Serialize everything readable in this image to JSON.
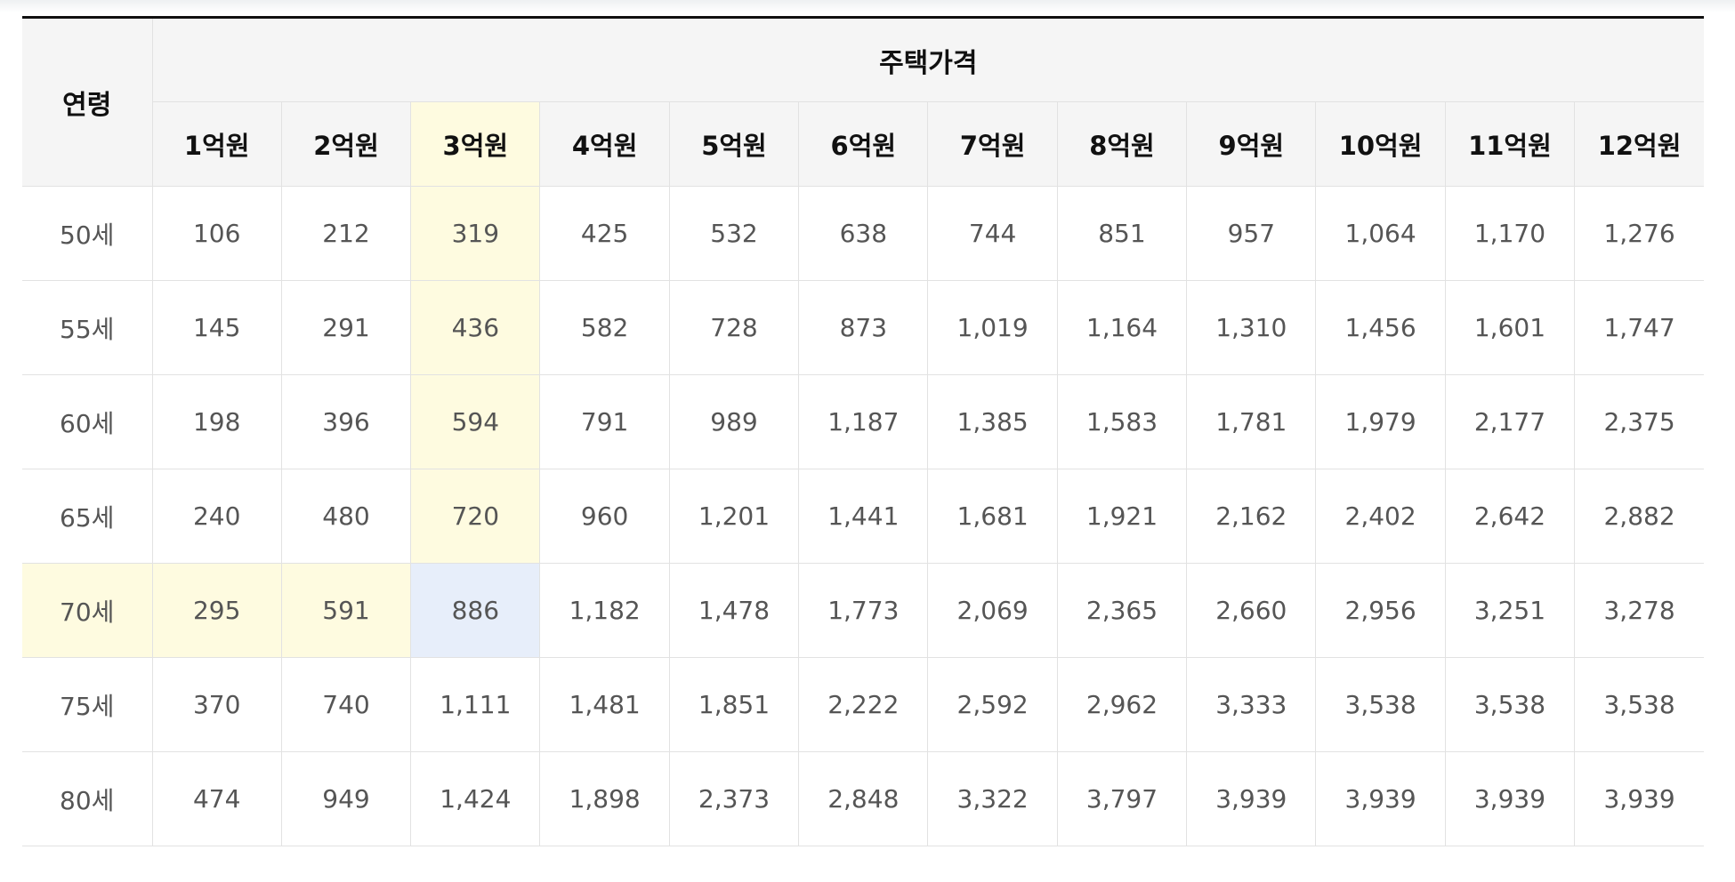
{
  "table": {
    "age_header": "연령",
    "group_header": "주택가격",
    "price_headers": [
      "1억원",
      "2억원",
      "3억원",
      "4억원",
      "5억원",
      "6억원",
      "7억원",
      "8억원",
      "9억원",
      "10억원",
      "11억원",
      "12억원"
    ],
    "rows": [
      {
        "age": "50세",
        "values": [
          "106",
          "212",
          "319",
          "425",
          "532",
          "638",
          "744",
          "851",
          "957",
          "1,064",
          "1,170",
          "1,276"
        ]
      },
      {
        "age": "55세",
        "values": [
          "145",
          "291",
          "436",
          "582",
          "728",
          "873",
          "1,019",
          "1,164",
          "1,310",
          "1,456",
          "1,601",
          "1,747"
        ]
      },
      {
        "age": "60세",
        "values": [
          "198",
          "396",
          "594",
          "791",
          "989",
          "1,187",
          "1,385",
          "1,583",
          "1,781",
          "1,979",
          "2,177",
          "2,375"
        ]
      },
      {
        "age": "65세",
        "values": [
          "240",
          "480",
          "720",
          "960",
          "1,201",
          "1,441",
          "1,681",
          "1,921",
          "2,162",
          "2,402",
          "2,642",
          "2,882"
        ]
      },
      {
        "age": "70세",
        "values": [
          "295",
          "591",
          "886",
          "1,182",
          "1,478",
          "1,773",
          "2,069",
          "2,365",
          "2,660",
          "2,956",
          "3,251",
          "3,278"
        ]
      },
      {
        "age": "75세",
        "values": [
          "370",
          "740",
          "1,111",
          "1,481",
          "1,851",
          "2,222",
          "2,592",
          "2,962",
          "3,333",
          "3,538",
          "3,538",
          "3,538"
        ]
      },
      {
        "age": "80세",
        "values": [
          "474",
          "949",
          "1,424",
          "1,898",
          "2,373",
          "2,848",
          "3,322",
          "3,797",
          "3,939",
          "3,939",
          "3,939",
          "3,939"
        ]
      }
    ],
    "highlight": {
      "column_index": 2,
      "row_index": 4,
      "column_color": "#fefbe0",
      "row_color": "#fefbe0",
      "intersection_color": "#e7eefa"
    }
  }
}
